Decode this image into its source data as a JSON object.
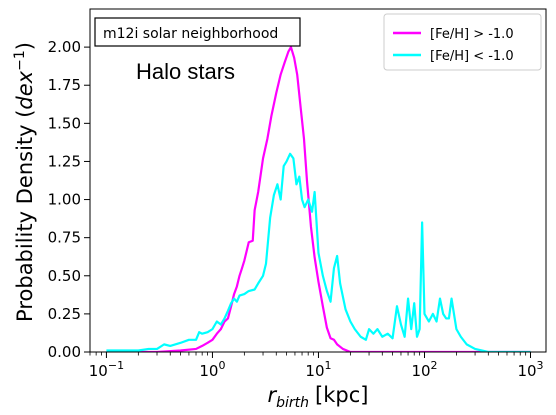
{
  "chart_data": {
    "type": "line",
    "title": "",
    "xlabel_main": "r",
    "xlabel_sub": "birth",
    "xlabel_unit": "[kpc]",
    "ylabel_main": "Probability Density (",
    "ylabel_italic": "dex",
    "ylabel_sup": "−1",
    "ylabel_close": ")",
    "x_scale": "log",
    "xlim": [
      0.07,
      1400
    ],
    "ylim": [
      0,
      2.25
    ],
    "x_ticks": [
      {
        "value": 0.1,
        "base": "10",
        "exp": "−1"
      },
      {
        "value": 1,
        "base": "10",
        "exp": "0"
      },
      {
        "value": 10,
        "base": "10",
        "exp": "1"
      },
      {
        "value": 100,
        "base": "10",
        "exp": "2"
      },
      {
        "value": 1000,
        "base": "10",
        "exp": "3"
      }
    ],
    "y_ticks": [
      "0.00",
      "0.25",
      "0.50",
      "0.75",
      "1.00",
      "1.25",
      "1.50",
      "1.75",
      "2.00"
    ],
    "annotation_box": "m12i solar neighborhood",
    "annotation_text": "Halo stars",
    "legend_position": "upper-right",
    "grid": false,
    "series": [
      {
        "name": "[Fe/H] > -1.0",
        "color": "#ff00ff",
        "points": [
          [
            0.1,
            0.0
          ],
          [
            0.3,
            0.0
          ],
          [
            0.5,
            0.01
          ],
          [
            0.7,
            0.02
          ],
          [
            0.8,
            0.04
          ],
          [
            0.9,
            0.06
          ],
          [
            1.0,
            0.08
          ],
          [
            1.1,
            0.12
          ],
          [
            1.2,
            0.15
          ],
          [
            1.3,
            0.2
          ],
          [
            1.4,
            0.22
          ],
          [
            1.5,
            0.3
          ],
          [
            1.6,
            0.38
          ],
          [
            1.7,
            0.43
          ],
          [
            1.8,
            0.5
          ],
          [
            1.9,
            0.55
          ],
          [
            2.0,
            0.6
          ],
          [
            2.2,
            0.72
          ],
          [
            2.4,
            0.73
          ],
          [
            2.5,
            0.93
          ],
          [
            2.7,
            1.05
          ],
          [
            3.0,
            1.27
          ],
          [
            3.3,
            1.4
          ],
          [
            3.6,
            1.55
          ],
          [
            4.0,
            1.7
          ],
          [
            4.4,
            1.82
          ],
          [
            4.8,
            1.9
          ],
          [
            5.2,
            1.97
          ],
          [
            5.5,
            2.0
          ],
          [
            5.9,
            1.93
          ],
          [
            6.3,
            1.82
          ],
          [
            6.8,
            1.6
          ],
          [
            7.3,
            1.4
          ],
          [
            7.8,
            1.12
          ],
          [
            8.5,
            0.82
          ],
          [
            9.2,
            0.62
          ],
          [
            10.0,
            0.46
          ],
          [
            11.0,
            0.3
          ],
          [
            12.0,
            0.16
          ],
          [
            13.0,
            0.09
          ],
          [
            14.0,
            0.08
          ],
          [
            15.0,
            0.05
          ],
          [
            17.0,
            0.02
          ],
          [
            20.0,
            0.0
          ],
          [
            40.0,
            0.0
          ],
          [
            100.0,
            0.0
          ],
          [
            1000.0,
            0.0
          ]
        ]
      },
      {
        "name": "[Fe/H] < -1.0",
        "color": "#00ffff",
        "points": [
          [
            0.1,
            0.01
          ],
          [
            0.2,
            0.01
          ],
          [
            0.25,
            0.02
          ],
          [
            0.3,
            0.02
          ],
          [
            0.35,
            0.05
          ],
          [
            0.4,
            0.04
          ],
          [
            0.5,
            0.06
          ],
          [
            0.6,
            0.08
          ],
          [
            0.7,
            0.08
          ],
          [
            0.75,
            0.13
          ],
          [
            0.8,
            0.12
          ],
          [
            0.9,
            0.13
          ],
          [
            1.0,
            0.15
          ],
          [
            1.1,
            0.2
          ],
          [
            1.2,
            0.18
          ],
          [
            1.3,
            0.22
          ],
          [
            1.4,
            0.27
          ],
          [
            1.5,
            0.32
          ],
          [
            1.6,
            0.35
          ],
          [
            1.7,
            0.33
          ],
          [
            1.8,
            0.37
          ],
          [
            2.0,
            0.38
          ],
          [
            2.2,
            0.4
          ],
          [
            2.5,
            0.41
          ],
          [
            2.7,
            0.45
          ],
          [
            3.0,
            0.5
          ],
          [
            3.2,
            0.58
          ],
          [
            3.5,
            0.88
          ],
          [
            3.8,
            1.03
          ],
          [
            4.1,
            1.1
          ],
          [
            4.4,
            1.0
          ],
          [
            4.7,
            1.22
          ],
          [
            5.0,
            1.25
          ],
          [
            5.4,
            1.3
          ],
          [
            5.8,
            1.27
          ],
          [
            6.2,
            1.1
          ],
          [
            6.6,
            1.15
          ],
          [
            7.0,
            1.0
          ],
          [
            7.4,
            0.95
          ],
          [
            8.0,
            1.0
          ],
          [
            8.7,
            0.92
          ],
          [
            9.2,
            1.05
          ],
          [
            10.0,
            0.65
          ],
          [
            11.0,
            0.5
          ],
          [
            12.0,
            0.4
          ],
          [
            13.0,
            0.33
          ],
          [
            14.0,
            0.55
          ],
          [
            15.0,
            0.63
          ],
          [
            16.0,
            0.45
          ],
          [
            18.0,
            0.28
          ],
          [
            20.0,
            0.2
          ],
          [
            22.0,
            0.15
          ],
          [
            25.0,
            0.1
          ],
          [
            28.0,
            0.08
          ],
          [
            30.0,
            0.15
          ],
          [
            33.0,
            0.12
          ],
          [
            36.0,
            0.15
          ],
          [
            40.0,
            0.1
          ],
          [
            45.0,
            0.12
          ],
          [
            50.0,
            0.09
          ],
          [
            55.0,
            0.3
          ],
          [
            60.0,
            0.18
          ],
          [
            65.0,
            0.1
          ],
          [
            70.0,
            0.35
          ],
          [
            75.0,
            0.15
          ],
          [
            80.0,
            0.32
          ],
          [
            85.0,
            0.1
          ],
          [
            90.0,
            0.15
          ],
          [
            95.0,
            0.85
          ],
          [
            100.0,
            0.25
          ],
          [
            110.0,
            0.2
          ],
          [
            120.0,
            0.25
          ],
          [
            130.0,
            0.2
          ],
          [
            140.0,
            0.35
          ],
          [
            150.0,
            0.25
          ],
          [
            160.0,
            0.22
          ],
          [
            170.0,
            0.22
          ],
          [
            180.0,
            0.35
          ],
          [
            200.0,
            0.15
          ],
          [
            220.0,
            0.1
          ],
          [
            250.0,
            0.05
          ],
          [
            300.0,
            0.02
          ],
          [
            400.0,
            0.0
          ],
          [
            1000.0,
            0.0
          ]
        ]
      }
    ]
  }
}
